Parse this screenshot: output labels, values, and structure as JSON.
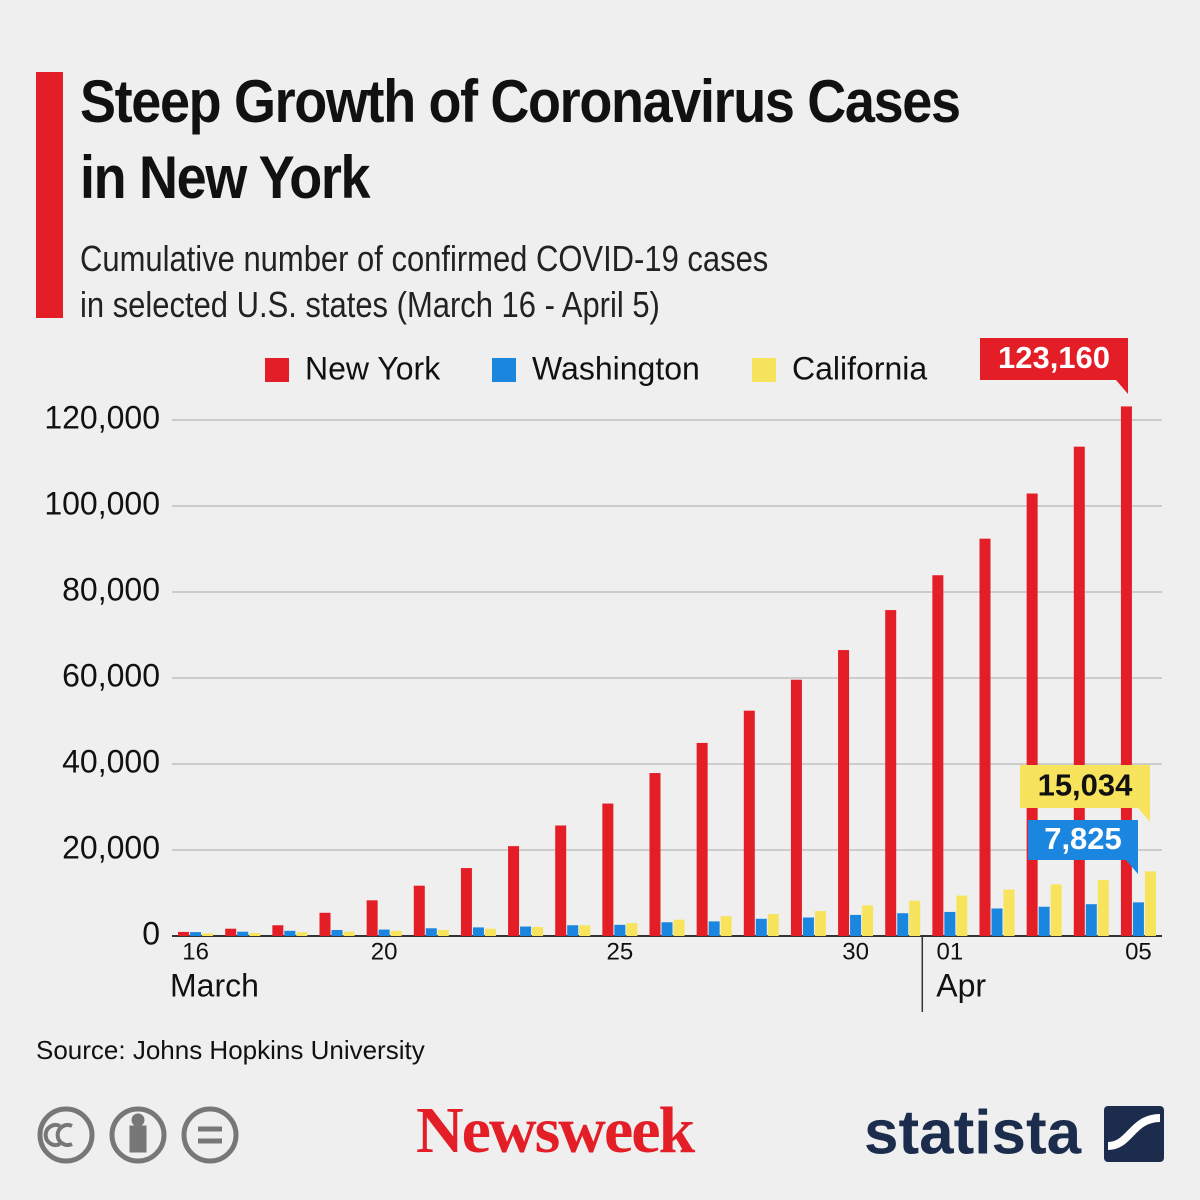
{
  "chart_data": {
    "type": "bar",
    "title": "Steep Growth of Coronavirus Cases\nin New York",
    "subtitle": "Cumulative number of confirmed COVID-19 cases\nin selected U.S. states (March 16 - April 5)",
    "categories": [
      "16",
      null,
      null,
      null,
      "20",
      null,
      null,
      null,
      null,
      "25",
      null,
      null,
      null,
      null,
      "30",
      null,
      "01",
      null,
      null,
      null,
      "05"
    ],
    "month_labels": [
      "March",
      "Apr"
    ],
    "series": [
      {
        "name": "New York",
        "color": "#e41e26",
        "values": [
          950,
          1700,
          2500,
          5400,
          8300,
          11700,
          15800,
          20900,
          25700,
          30800,
          37900,
          44900,
          52400,
          59600,
          66500,
          75800,
          83900,
          92400,
          102900,
          113800,
          123160
        ],
        "value_labels": [
          null,
          null,
          null,
          null,
          null,
          null,
          null,
          null,
          null,
          null,
          null,
          null,
          null,
          null,
          null,
          null,
          null,
          null,
          null,
          null,
          "123,160"
        ]
      },
      {
        "name": "Washington",
        "color": "#1a86e0",
        "values": [
          900,
          1000,
          1200,
          1400,
          1500,
          1800,
          2000,
          2200,
          2500,
          2600,
          3200,
          3400,
          4000,
          4300,
          4900,
          5300,
          5600,
          6400,
          6800,
          7400,
          7825
        ],
        "value_labels": [
          null,
          null,
          null,
          null,
          null,
          null,
          null,
          null,
          null,
          null,
          null,
          null,
          null,
          null,
          null,
          null,
          null,
          null,
          null,
          null,
          "7,825"
        ]
      },
      {
        "name": "California",
        "color": "#f7e45c",
        "values": [
          600,
          700,
          900,
          1000,
          1200,
          1400,
          1700,
          2100,
          2500,
          3000,
          3800,
          4600,
          5100,
          5800,
          7100,
          8200,
          9400,
          10800,
          12000,
          13000,
          15034
        ],
        "value_labels": [
          null,
          null,
          null,
          null,
          null,
          null,
          null,
          null,
          null,
          null,
          null,
          null,
          null,
          null,
          null,
          null,
          null,
          null,
          null,
          null,
          "15,034"
        ]
      }
    ],
    "ylim": [
      0,
      120000
    ],
    "yticks": [
      0,
      {
        "value": 20000,
        "label": "20,000"
      },
      {
        "value": 40000,
        "label": "40,000"
      },
      {
        "value": 60000,
        "label": "60,000"
      },
      {
        "value": 80000,
        "label": "80,000"
      },
      {
        "value": 100000,
        "label": "100,000"
      },
      {
        "value": 120000,
        "label": "120,000"
      }
    ],
    "grid": true,
    "legend": "top",
    "source": "Source: Johns Hopkins University",
    "brand_left": "Newsweek",
    "brand_right": "statista"
  }
}
